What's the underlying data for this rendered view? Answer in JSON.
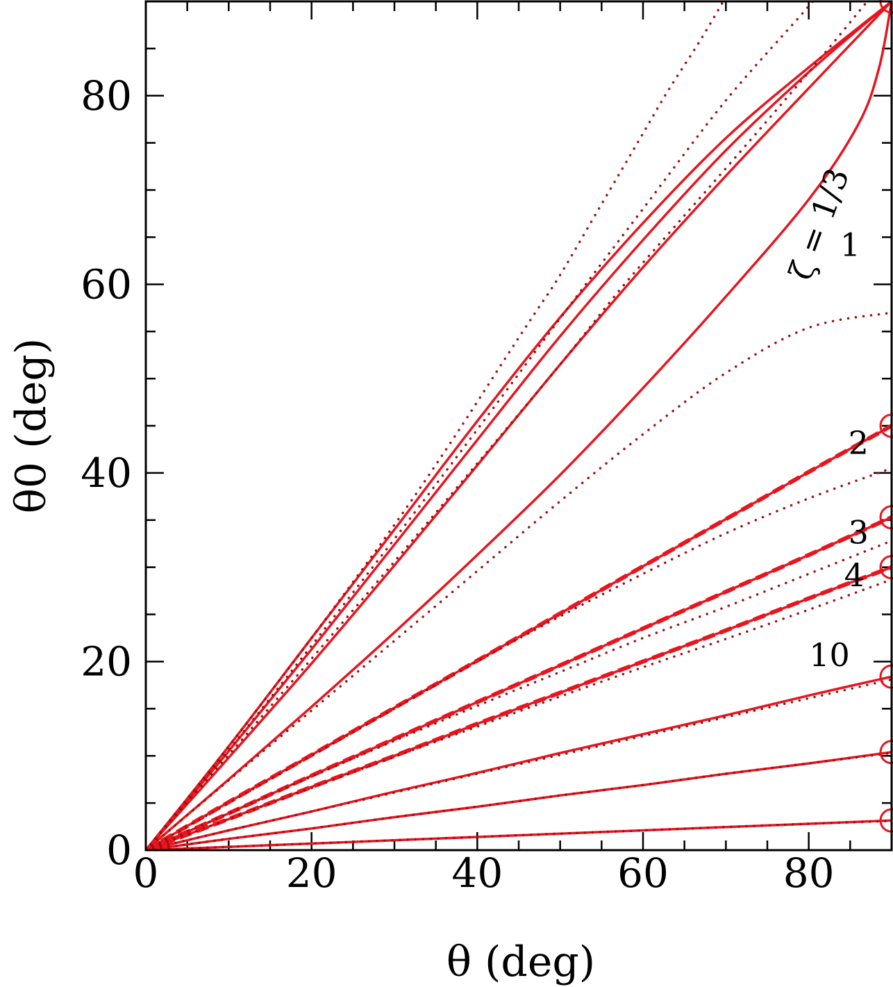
{
  "chart_data": {
    "type": "line",
    "xlabel": "θ (deg)",
    "ylabel": "θ0 (deg)",
    "xlim": [
      0,
      90
    ],
    "ylim": [
      0,
      90
    ],
    "x_ticks": [
      "0",
      "20",
      "40",
      "60",
      "80"
    ],
    "y_ticks": [
      "0",
      "20",
      "40",
      "60",
      "80"
    ],
    "grid": false,
    "colors": {
      "curve": "#e8141e",
      "dotted": "#9b1010",
      "axis": "#000000"
    },
    "annotations": [
      {
        "text": "ζ = 1/3",
        "x": 82.5,
        "y": 66,
        "rotation": -70
      },
      {
        "text": "1",
        "x": 85,
        "y": 63
      },
      {
        "text": "2",
        "x": 86,
        "y": 42
      },
      {
        "text": "3",
        "x": 86,
        "y": 32.5
      },
      {
        "text": "4",
        "x": 85.5,
        "y": 28
      },
      {
        "text": "10",
        "x": 82.5,
        "y": 19.5
      }
    ],
    "series": [
      {
        "style": "solid",
        "points": [
          [
            0,
            0
          ],
          [
            10,
            11
          ],
          [
            20,
            22.5
          ],
          [
            30,
            34
          ],
          [
            40,
            45.5
          ],
          [
            50,
            56.5
          ],
          [
            60,
            66.5
          ],
          [
            70,
            75.5
          ],
          [
            80,
            83
          ],
          [
            90,
            90
          ]
        ]
      },
      {
        "style": "solid",
        "points": [
          [
            0,
            0
          ],
          [
            10,
            10.5
          ],
          [
            20,
            21.3
          ],
          [
            30,
            32.4
          ],
          [
            40,
            43.5
          ],
          [
            50,
            54.5
          ],
          [
            60,
            64.7
          ],
          [
            70,
            74.2
          ],
          [
            80,
            82.5
          ],
          [
            90,
            90
          ]
        ]
      },
      {
        "style": "solid",
        "points": [
          [
            0,
            0
          ],
          [
            10,
            9.8
          ],
          [
            20,
            19.8
          ],
          [
            30,
            30.2
          ],
          [
            40,
            40.8
          ],
          [
            50,
            51.5
          ],
          [
            60,
            61.8
          ],
          [
            70,
            71.5
          ],
          [
            80,
            80.8
          ],
          [
            90,
            90
          ]
        ]
      },
      {
        "style": "solid",
        "points": [
          [
            0,
            0
          ],
          [
            10,
            7.5
          ],
          [
            20,
            15.2
          ],
          [
            30,
            23.1
          ],
          [
            40,
            31.3
          ],
          [
            50,
            39.8
          ],
          [
            60,
            49
          ],
          [
            70,
            58.7
          ],
          [
            80,
            69
          ],
          [
            86,
            77
          ],
          [
            88.5,
            83
          ],
          [
            90,
            90
          ]
        ]
      },
      {
        "style": "solid-dashed",
        "points": [
          [
            0,
            0
          ],
          [
            10,
            5.1
          ],
          [
            20,
            10.1
          ],
          [
            30,
            15.1
          ],
          [
            40,
            20.1
          ],
          [
            50,
            25.1
          ],
          [
            60,
            30.1
          ],
          [
            70,
            35.1
          ],
          [
            80,
            40.1
          ],
          [
            90,
            45
          ]
        ]
      },
      {
        "style": "solid-dashed",
        "points": [
          [
            0,
            0
          ],
          [
            10,
            3.9
          ],
          [
            20,
            7.9
          ],
          [
            30,
            11.8
          ],
          [
            40,
            15.7
          ],
          [
            50,
            19.6
          ],
          [
            60,
            23.5
          ],
          [
            70,
            27.4
          ],
          [
            80,
            31.3
          ],
          [
            90,
            35.3
          ]
        ]
      },
      {
        "style": "solid-dashed",
        "points": [
          [
            0,
            0
          ],
          [
            10,
            3.3
          ],
          [
            20,
            6.7
          ],
          [
            30,
            10
          ],
          [
            40,
            13.4
          ],
          [
            50,
            16.7
          ],
          [
            60,
            20
          ],
          [
            70,
            23.3
          ],
          [
            80,
            26.7
          ],
          [
            90,
            30
          ]
        ]
      },
      {
        "style": "solid",
        "points": [
          [
            0,
            0
          ],
          [
            10,
            2.1
          ],
          [
            20,
            4.1
          ],
          [
            30,
            6.2
          ],
          [
            40,
            8.2
          ],
          [
            50,
            10.3
          ],
          [
            60,
            12.3
          ],
          [
            70,
            14.3
          ],
          [
            80,
            16.4
          ],
          [
            90,
            18.4
          ]
        ]
      },
      {
        "style": "solid",
        "points": [
          [
            0,
            0
          ],
          [
            10,
            1.2
          ],
          [
            20,
            2.3
          ],
          [
            30,
            3.5
          ],
          [
            40,
            4.6
          ],
          [
            50,
            5.8
          ],
          [
            60,
            6.9
          ],
          [
            70,
            8.1
          ],
          [
            80,
            9.2
          ],
          [
            90,
            10.4
          ]
        ]
      },
      {
        "style": "solid",
        "points": [
          [
            0,
            0
          ],
          [
            10,
            0.35
          ],
          [
            20,
            0.7
          ],
          [
            30,
            1.05
          ],
          [
            40,
            1.4
          ],
          [
            50,
            1.75
          ],
          [
            60,
            2.1
          ],
          [
            70,
            2.45
          ],
          [
            80,
            2.8
          ],
          [
            90,
            3.15
          ]
        ]
      },
      {
        "style": "dotted",
        "points": [
          [
            0,
            0
          ],
          [
            10,
            11
          ],
          [
            20,
            22.5
          ],
          [
            30,
            34.5
          ],
          [
            37,
            43.5
          ],
          [
            44,
            53
          ],
          [
            47,
            57
          ],
          [
            50,
            61
          ],
          [
            55,
            68.5
          ],
          [
            60,
            76
          ],
          [
            63,
            80.5
          ],
          [
            67,
            86
          ],
          [
            71,
            92
          ]
        ]
      },
      {
        "style": "dotted",
        "points": [
          [
            0,
            0
          ],
          [
            10,
            10.6
          ],
          [
            20,
            21.7
          ],
          [
            30,
            33
          ],
          [
            40,
            44.6
          ],
          [
            50,
            56.4
          ],
          [
            60,
            68
          ],
          [
            70,
            79.5
          ],
          [
            80,
            89.5
          ],
          [
            82,
            92
          ]
        ]
      },
      {
        "style": "dotted",
        "points": [
          [
            0,
            0
          ],
          [
            10,
            10.1
          ],
          [
            20,
            20.3
          ],
          [
            30,
            30.6
          ],
          [
            40,
            41
          ],
          [
            50,
            51.5
          ],
          [
            57,
            59.2
          ],
          [
            63,
            65.3
          ],
          [
            70,
            72.3
          ],
          [
            80,
            82.5
          ],
          [
            88,
            91
          ]
        ]
      },
      {
        "style": "dotted",
        "points": [
          [
            0,
            0
          ],
          [
            10,
            7.4
          ],
          [
            20,
            14.8
          ],
          [
            30,
            22.2
          ],
          [
            40,
            29.6
          ],
          [
            50,
            37
          ],
          [
            60,
            44.1
          ],
          [
            70,
            50.6
          ],
          [
            80,
            55.4
          ],
          [
            90,
            57
          ]
        ]
      },
      {
        "style": "dotted",
        "points": [
          [
            0,
            0
          ],
          [
            10,
            5
          ],
          [
            20,
            10
          ],
          [
            30,
            15
          ],
          [
            40,
            20
          ],
          [
            50,
            24.8
          ],
          [
            60,
            29.3
          ],
          [
            70,
            33.6
          ],
          [
            80,
            37.3
          ],
          [
            90,
            40.5
          ]
        ]
      },
      {
        "style": "dotted",
        "points": [
          [
            0,
            0
          ],
          [
            10,
            3.9
          ],
          [
            20,
            7.8
          ],
          [
            30,
            11.6
          ],
          [
            40,
            15.3
          ],
          [
            50,
            18.9
          ],
          [
            60,
            22.5
          ],
          [
            70,
            25.8
          ],
          [
            80,
            29.3
          ],
          [
            90,
            32.8
          ]
        ]
      },
      {
        "style": "dotted",
        "points": [
          [
            0,
            0
          ],
          [
            10,
            3.3
          ],
          [
            20,
            6.6
          ],
          [
            30,
            9.9
          ],
          [
            40,
            13.1
          ],
          [
            50,
            16.3
          ],
          [
            60,
            19.4
          ],
          [
            70,
            22.4
          ],
          [
            80,
            25.5
          ],
          [
            90,
            28.7
          ]
        ]
      },
      {
        "style": "dotted",
        "points": [
          [
            0,
            0
          ],
          [
            10,
            2.1
          ],
          [
            20,
            4.1
          ],
          [
            30,
            6.1
          ],
          [
            40,
            8.1
          ],
          [
            50,
            10.1
          ],
          [
            60,
            12.1
          ],
          [
            70,
            14.1
          ],
          [
            80,
            16.1
          ],
          [
            90,
            18.1
          ]
        ]
      },
      {
        "style": "dotted",
        "points": [
          [
            0,
            0
          ],
          [
            10,
            1.2
          ],
          [
            20,
            2.3
          ],
          [
            30,
            3.5
          ],
          [
            40,
            4.6
          ],
          [
            50,
            5.8
          ],
          [
            60,
            6.9
          ],
          [
            70,
            8.1
          ],
          [
            80,
            9.2
          ],
          [
            90,
            10.3
          ]
        ]
      },
      {
        "style": "dotted",
        "points": [
          [
            0,
            0
          ],
          [
            10,
            0.35
          ],
          [
            20,
            0.7
          ],
          [
            30,
            1.05
          ],
          [
            40,
            1.4
          ],
          [
            50,
            1.75
          ],
          [
            60,
            2.1
          ],
          [
            70,
            2.45
          ],
          [
            80,
            2.8
          ],
          [
            90,
            3.1
          ]
        ]
      }
    ],
    "endpoint_markers": [
      {
        "x": 90,
        "y": 90
      },
      {
        "x": 90,
        "y": 45
      },
      {
        "x": 90,
        "y": 35.3
      },
      {
        "x": 90,
        "y": 30
      },
      {
        "x": 90,
        "y": 18.4
      },
      {
        "x": 90,
        "y": 10.4
      },
      {
        "x": 90,
        "y": 3.15
      }
    ]
  }
}
